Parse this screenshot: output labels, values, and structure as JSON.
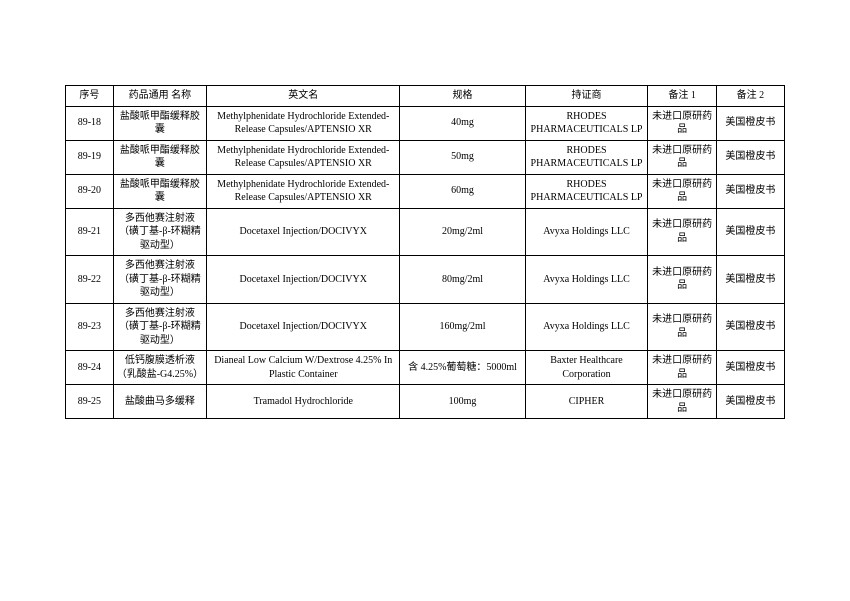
{
  "table": {
    "columns": [
      {
        "label": "序号",
        "width": 42,
        "align": "center"
      },
      {
        "label": "药品通用\n名称",
        "width": 82,
        "align": "center"
      },
      {
        "label": "英文名",
        "width": 170,
        "align": "center"
      },
      {
        "label": "规格",
        "width": 110,
        "align": "center"
      },
      {
        "label": "持证商",
        "width": 108,
        "align": "center"
      },
      {
        "label": "备注 1",
        "width": 60,
        "align": "center"
      },
      {
        "label": "备注 2",
        "width": 60,
        "align": "center"
      }
    ],
    "rows": [
      [
        "89-18",
        "盐酸哌甲酯缓释胶囊",
        "Methylphenidate Hydrochloride Extended-Release Capsules/APTENSIO XR",
        "40mg",
        "RHODES PHARMACEUTICALS LP",
        "未进口原研药品",
        "美国橙皮书"
      ],
      [
        "89-19",
        "盐酸哌甲酯缓释胶囊",
        "Methylphenidate Hydrochloride Extended-Release Capsules/APTENSIO XR",
        "50mg",
        "RHODES PHARMACEUTICALS LP",
        "未进口原研药品",
        "美国橙皮书"
      ],
      [
        "89-20",
        "盐酸哌甲酯缓释胶囊",
        "Methylphenidate Hydrochloride Extended-Release Capsules/APTENSIO XR",
        "60mg",
        "RHODES PHARMACEUTICALS LP",
        "未进口原研药品",
        "美国橙皮书"
      ],
      [
        "89-21",
        "多西他赛注射液（磺丁基-β-环糊精驱动型）",
        "Docetaxel Injection/DOCIVYX",
        "20mg/2ml",
        "Avyxa Holdings LLC",
        "未进口原研药品",
        "美国橙皮书"
      ],
      [
        "89-22",
        "多西他赛注射液（磺丁基-β-环糊精驱动型）",
        "Docetaxel Injection/DOCIVYX",
        "80mg/2ml",
        "Avyxa Holdings LLC",
        "未进口原研药品",
        "美国橙皮书"
      ],
      [
        "89-23",
        "多西他赛注射液（磺丁基-β-环糊精驱动型）",
        "Docetaxel Injection/DOCIVYX",
        "160mg/2ml",
        "Avyxa Holdings LLC",
        "未进口原研药品",
        "美国橙皮书"
      ],
      [
        "89-24",
        "低钙腹膜透析液（乳酸盐-G4.25%）",
        "Dianeal Low Calcium W/Dextrose 4.25% In Plastic Container",
        "含 4.25%葡萄糖：5000ml",
        "Baxter Healthcare Corporation",
        "未进口原研药品",
        "美国橙皮书"
      ],
      [
        "89-25",
        "盐酸曲马多缓释",
        "Tramadol Hydrochloride",
        "100mg",
        "CIPHER",
        "未进口原研药品",
        "美国橙皮书"
      ]
    ],
    "border_color": "#000000",
    "font_size": 10,
    "background_color": "#ffffff",
    "text_color": "#000000"
  }
}
